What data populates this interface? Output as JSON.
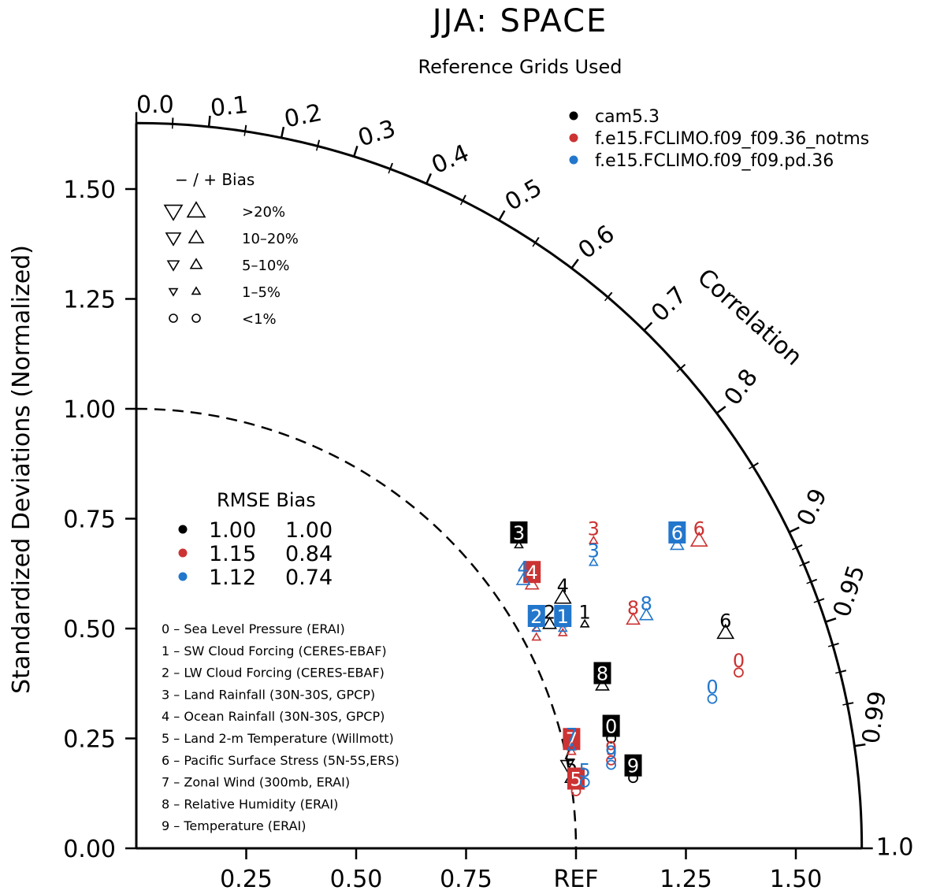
{
  "chart_data": {
    "type": "taylor",
    "title": "JJA: SPACE",
    "subtitle": "Reference Grids Used",
    "ylabel": "Standardized Deviations (Normalized)",
    "correlation_label": "Correlation",
    "ref_label": "REF",
    "std_range": [
      0,
      1.65
    ],
    "x_ticks": [
      "0.25",
      "0.50",
      "0.75",
      "REF",
      "1.25",
      "1.50"
    ],
    "x_tick_values": [
      0.25,
      0.5,
      0.75,
      1.0,
      1.25,
      1.5
    ],
    "y_ticks": [
      "0.00",
      "0.25",
      "0.50",
      "0.75",
      "1.00",
      "1.25",
      "1.50"
    ],
    "y_tick_values": [
      0,
      0.25,
      0.5,
      0.75,
      1.0,
      1.25,
      1.5
    ],
    "corr_ticks": [
      "0.0",
      "0.1",
      "0.2",
      "0.3",
      "0.4",
      "0.5",
      "0.6",
      "0.7",
      "0.8",
      "0.9",
      "0.95",
      "0.99",
      "1.0"
    ],
    "corr_tick_values": [
      0,
      0.1,
      0.2,
      0.3,
      0.4,
      0.5,
      0.6,
      0.7,
      0.8,
      0.9,
      0.95,
      0.99,
      1.0
    ],
    "minor_corr_ticks": [
      0.05,
      0.15,
      0.25,
      0.35,
      0.45,
      0.55,
      0.65,
      0.75,
      0.85,
      0.91,
      0.92,
      0.93,
      0.94,
      0.96,
      0.97,
      0.98
    ],
    "legend_cases": [
      {
        "name": "cam5.3",
        "color": "#000000"
      },
      {
        "name": "f.e15.FCLIMO.f09_f09.36_notms",
        "color": "#cc3333"
      },
      {
        "name": "f.e15.FCLIMO.f09_f09.pd.36",
        "color": "#2277cc"
      }
    ],
    "bias_legend": {
      "header": "−  /  +      Bias",
      "rows": [
        {
          "label": ">20%",
          "symbol": "triangle",
          "size": 11
        },
        {
          "label": "10–20%",
          "symbol": "triangle",
          "size": 9
        },
        {
          "label": "5–10%",
          "symbol": "triangle",
          "size": 7
        },
        {
          "label": "1–5%",
          "symbol": "triangle",
          "size": 5
        },
        {
          "label": "<1%",
          "symbol": "circle",
          "size": 5
        }
      ]
    },
    "rmse_table": {
      "header": "RMSE Bias",
      "rows": [
        {
          "rmse": "1.00",
          "bias": "1.00",
          "color": "#000000"
        },
        {
          "rmse": "1.15",
          "bias": "0.84",
          "color": "#cc3333"
        },
        {
          "rmse": "1.12",
          "bias": "0.74",
          "color": "#2277cc"
        }
      ]
    },
    "variables": [
      "0 – Sea Level Pressure (ERAI)",
      "1 – SW Cloud Forcing (CERES-EBAF)",
      "2 – LW Cloud Forcing (CERES-EBAF)",
      "3 – Land Rainfall (30N-30S, GPCP)",
      "4 – Ocean Rainfall (30N-30S, GPCP)",
      "5 – Land 2-m Temperature (Willmott)",
      "6 – Pacific Surface Stress (5N-5S,ERS)",
      "7 – Zonal Wind (300mb, ERAI)",
      "8 – Relative Humidity (ERAI)",
      "9 – Temperature (ERAI)"
    ],
    "points": [
      {
        "case": 0,
        "label": "0",
        "x": 1.08,
        "y": 0.25,
        "marker": "circle",
        "boxed": true
      },
      {
        "case": 0,
        "label": "1",
        "x": 1.02,
        "y": 0.51,
        "marker": "tri-up-s",
        "boxed": false
      },
      {
        "case": 0,
        "label": "2",
        "x": 0.94,
        "y": 0.51,
        "marker": "tri-up-m",
        "boxed": false
      },
      {
        "case": 0,
        "label": "3",
        "x": 0.87,
        "y": 0.69,
        "marker": "tri-up-s",
        "boxed": true
      },
      {
        "case": 0,
        "label": "4",
        "x": 0.97,
        "y": 0.57,
        "marker": "tri-up-l",
        "boxed": false
      },
      {
        "case": 0,
        "label": "5",
        "x": 0.99,
        "y": 0.16,
        "marker": "tri-up-m",
        "boxed": false
      },
      {
        "case": 0,
        "label": "6",
        "x": 1.34,
        "y": 0.49,
        "marker": "tri-up-l",
        "boxed": false
      },
      {
        "case": 0,
        "label": "7",
        "x": 0.98,
        "y": 0.19,
        "marker": "tri-down-m",
        "boxed": false
      },
      {
        "case": 0,
        "label": "8",
        "x": 1.06,
        "y": 0.37,
        "marker": "tri-up-m",
        "boxed": true
      },
      {
        "case": 0,
        "label": "9",
        "x": 1.13,
        "y": 0.16,
        "marker": "circle",
        "boxed": true
      },
      {
        "case": 1,
        "label": "0",
        "x": 1.37,
        "y": 0.4,
        "marker": "circle",
        "boxed": false
      },
      {
        "case": 1,
        "label": "1",
        "x": 0.97,
        "y": 0.49,
        "marker": "tri-up-s",
        "boxed": false
      },
      {
        "case": 1,
        "label": "2",
        "x": 0.91,
        "y": 0.48,
        "marker": "tri-up-s",
        "boxed": false
      },
      {
        "case": 1,
        "label": "3",
        "x": 1.04,
        "y": 0.7,
        "marker": "tri-up-s",
        "boxed": false
      },
      {
        "case": 1,
        "label": "4",
        "x": 0.9,
        "y": 0.6,
        "marker": "tri-up-m",
        "boxed": true
      },
      {
        "case": 1,
        "label": "5",
        "x": 1.0,
        "y": 0.13,
        "marker": "circle",
        "boxed": true
      },
      {
        "case": 1,
        "label": "6",
        "x": 1.28,
        "y": 0.7,
        "marker": "tri-up-l",
        "boxed": false
      },
      {
        "case": 1,
        "label": "7",
        "x": 0.99,
        "y": 0.22,
        "marker": "tri-up-s",
        "boxed": true
      },
      {
        "case": 1,
        "label": "8",
        "x": 1.13,
        "y": 0.52,
        "marker": "tri-up-m",
        "boxed": false
      },
      {
        "case": 1,
        "label": "9",
        "x": 1.08,
        "y": 0.2,
        "marker": "circle",
        "boxed": false
      },
      {
        "case": 2,
        "label": "0",
        "x": 1.31,
        "y": 0.34,
        "marker": "circle",
        "boxed": false
      },
      {
        "case": 2,
        "label": "1",
        "x": 0.97,
        "y": 0.5,
        "marker": "tri-up-s",
        "boxed": true
      },
      {
        "case": 2,
        "label": "2",
        "x": 0.91,
        "y": 0.5,
        "marker": "tri-up-s",
        "boxed": true
      },
      {
        "case": 2,
        "label": "3",
        "x": 1.04,
        "y": 0.65,
        "marker": "tri-up-s",
        "boxed": false
      },
      {
        "case": 2,
        "label": "4",
        "x": 0.88,
        "y": 0.61,
        "marker": "tri-up-m",
        "boxed": false
      },
      {
        "case": 2,
        "label": "5",
        "x": 1.02,
        "y": 0.15,
        "marker": "circle",
        "boxed": false
      },
      {
        "case": 2,
        "label": "6",
        "x": 1.23,
        "y": 0.69,
        "marker": "tri-up-m",
        "boxed": true
      },
      {
        "case": 2,
        "label": "7",
        "x": 0.99,
        "y": 0.23,
        "marker": "tri-up-s",
        "boxed": false
      },
      {
        "case": 2,
        "label": "8",
        "x": 1.16,
        "y": 0.53,
        "marker": "tri-up-m",
        "boxed": false
      },
      {
        "case": 2,
        "label": "9",
        "x": 1.08,
        "y": 0.19,
        "marker": "circle",
        "boxed": false
      }
    ]
  }
}
